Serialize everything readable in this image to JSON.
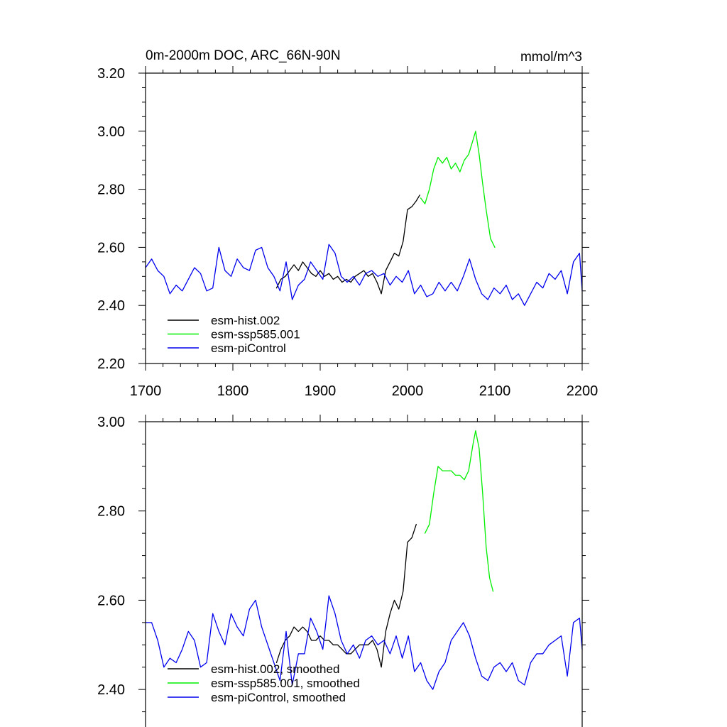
{
  "chart_data": [
    {
      "type": "line",
      "title": "0m-2000m DOC, ARC_66N-90N",
      "units": "mmol/m^3",
      "xlim": [
        1700,
        2200
      ],
      "ylim": [
        2.2,
        3.2
      ],
      "xticks": [
        1700,
        1800,
        1900,
        2000,
        2100,
        2200
      ],
      "xtick_labels": [
        "1700",
        "1800",
        "1900",
        "2000",
        "2100",
        "2200"
      ],
      "yticks": [
        2.2,
        2.4,
        2.6,
        2.8,
        3.0,
        3.2
      ],
      "ytick_labels": [
        "2.20",
        "2.40",
        "2.60",
        "2.80",
        "3.00",
        "3.20"
      ],
      "legend_position": "bottom-left",
      "series": [
        {
          "name": "esm-hist.002",
          "color": "#000000",
          "x": [
            1850,
            1855,
            1860,
            1865,
            1870,
            1875,
            1880,
            1885,
            1890,
            1895,
            1900,
            1905,
            1910,
            1915,
            1920,
            1925,
            1930,
            1935,
            1940,
            1945,
            1950,
            1955,
            1960,
            1965,
            1970,
            1975,
            1980,
            1985,
            1990,
            1995,
            2000,
            2005,
            2010,
            2014
          ],
          "values": [
            2.46,
            2.49,
            2.5,
            2.52,
            2.54,
            2.52,
            2.55,
            2.53,
            2.51,
            2.5,
            2.52,
            2.5,
            2.51,
            2.49,
            2.5,
            2.48,
            2.49,
            2.48,
            2.5,
            2.51,
            2.52,
            2.5,
            2.51,
            2.48,
            2.44,
            2.52,
            2.55,
            2.58,
            2.57,
            2.62,
            2.73,
            2.74,
            2.76,
            2.78
          ]
        },
        {
          "name": "esm-ssp585.001",
          "color": "#00ee00",
          "x": [
            2015,
            2020,
            2025,
            2030,
            2035,
            2040,
            2045,
            2050,
            2055,
            2060,
            2065,
            2070,
            2075,
            2078,
            2082,
            2086,
            2090,
            2095,
            2100
          ],
          "values": [
            2.77,
            2.75,
            2.8,
            2.87,
            2.91,
            2.89,
            2.91,
            2.87,
            2.89,
            2.86,
            2.9,
            2.92,
            2.97,
            3.0,
            2.92,
            2.82,
            2.73,
            2.63,
            2.6
          ]
        },
        {
          "name": "esm-piControl",
          "color": "#0000ee",
          "x": [
            1700,
            1707,
            1714,
            1721,
            1728,
            1735,
            1742,
            1749,
            1756,
            1763,
            1770,
            1777,
            1784,
            1791,
            1798,
            1805,
            1812,
            1819,
            1826,
            1833,
            1840,
            1847,
            1854,
            1861,
            1868,
            1875,
            1882,
            1889,
            1896,
            1903,
            1910,
            1917,
            1924,
            1931,
            1938,
            1945,
            1952,
            1959,
            1966,
            1973,
            1980,
            1987,
            1994,
            2001,
            2008,
            2015,
            2022,
            2029,
            2036,
            2043,
            2050,
            2057,
            2064,
            2071,
            2078,
            2085,
            2092,
            2099,
            2106,
            2113,
            2120,
            2127,
            2134,
            2141,
            2148,
            2155,
            2162,
            2169,
            2176,
            2183,
            2190,
            2197,
            2200
          ],
          "values": [
            2.53,
            2.56,
            2.52,
            2.5,
            2.44,
            2.47,
            2.45,
            2.49,
            2.53,
            2.51,
            2.45,
            2.46,
            2.6,
            2.52,
            2.5,
            2.56,
            2.53,
            2.52,
            2.59,
            2.6,
            2.53,
            2.5,
            2.45,
            2.55,
            2.42,
            2.47,
            2.49,
            2.55,
            2.52,
            2.49,
            2.61,
            2.58,
            2.5,
            2.48,
            2.5,
            2.47,
            2.51,
            2.52,
            2.5,
            2.51,
            2.47,
            2.5,
            2.48,
            2.52,
            2.44,
            2.47,
            2.43,
            2.44,
            2.48,
            2.45,
            2.48,
            2.45,
            2.5,
            2.56,
            2.49,
            2.44,
            2.42,
            2.46,
            2.44,
            2.47,
            2.42,
            2.44,
            2.4,
            2.44,
            2.48,
            2.46,
            2.51,
            2.49,
            2.52,
            2.44,
            2.55,
            2.58,
            2.45
          ]
        }
      ]
    },
    {
      "type": "line",
      "xlim": [
        1700,
        2200
      ],
      "ylim": [
        2.3,
        3.0
      ],
      "yticks": [
        2.4,
        2.6,
        2.8,
        3.0
      ],
      "ytick_labels": [
        "2.40",
        "2.60",
        "2.80",
        "3.00"
      ],
      "legend_position": "bottom-left",
      "series": [
        {
          "name": "esm-hist.002, smoothed",
          "color": "#000000",
          "x": [
            1850,
            1855,
            1860,
            1865,
            1870,
            1875,
            1880,
            1885,
            1890,
            1895,
            1900,
            1905,
            1910,
            1915,
            1920,
            1925,
            1930,
            1935,
            1940,
            1945,
            1950,
            1955,
            1960,
            1965,
            1970,
            1975,
            1980,
            1985,
            1990,
            1995,
            2000,
            2005,
            2010
          ],
          "values": [
            2.46,
            2.49,
            2.51,
            2.52,
            2.54,
            2.53,
            2.54,
            2.53,
            2.51,
            2.51,
            2.52,
            2.51,
            2.51,
            2.5,
            2.5,
            2.49,
            2.48,
            2.48,
            2.49,
            2.5,
            2.5,
            2.5,
            2.51,
            2.49,
            2.45,
            2.53,
            2.57,
            2.6,
            2.58,
            2.62,
            2.73,
            2.74,
            2.77
          ]
        },
        {
          "name": "esm-ssp585.001, smoothed",
          "color": "#00ee00",
          "x": [
            2020,
            2025,
            2030,
            2035,
            2040,
            2045,
            2050,
            2055,
            2060,
            2065,
            2070,
            2075,
            2078,
            2082,
            2086,
            2090,
            2094,
            2098
          ],
          "values": [
            2.75,
            2.77,
            2.84,
            2.9,
            2.89,
            2.89,
            2.89,
            2.88,
            2.88,
            2.87,
            2.89,
            2.95,
            2.98,
            2.94,
            2.84,
            2.72,
            2.65,
            2.62
          ]
        },
        {
          "name": "esm-piControl, smoothed",
          "color": "#0000ee",
          "x": [
            1700,
            1707,
            1714,
            1721,
            1728,
            1735,
            1742,
            1749,
            1756,
            1763,
            1770,
            1777,
            1784,
            1791,
            1798,
            1805,
            1812,
            1819,
            1826,
            1833,
            1840,
            1847,
            1854,
            1861,
            1868,
            1875,
            1882,
            1889,
            1896,
            1903,
            1910,
            1917,
            1924,
            1931,
            1938,
            1945,
            1952,
            1959,
            1966,
            1973,
            1980,
            1987,
            1994,
            2001,
            2008,
            2015,
            2022,
            2029,
            2036,
            2043,
            2050,
            2057,
            2064,
            2071,
            2078,
            2085,
            2092,
            2099,
            2106,
            2113,
            2120,
            2127,
            2134,
            2141,
            2148,
            2155,
            2162,
            2169,
            2176,
            2183,
            2190,
            2197,
            2200
          ],
          "values": [
            2.55,
            2.55,
            2.51,
            2.45,
            2.47,
            2.46,
            2.49,
            2.53,
            2.51,
            2.45,
            2.46,
            2.57,
            2.53,
            2.5,
            2.57,
            2.54,
            2.52,
            2.58,
            2.6,
            2.54,
            2.5,
            2.46,
            2.42,
            2.53,
            2.41,
            2.48,
            2.48,
            2.56,
            2.53,
            2.49,
            2.61,
            2.57,
            2.51,
            2.48,
            2.5,
            2.47,
            2.51,
            2.52,
            2.5,
            2.51,
            2.48,
            2.52,
            2.47,
            2.52,
            2.44,
            2.46,
            2.42,
            2.4,
            2.44,
            2.46,
            2.51,
            2.53,
            2.55,
            2.52,
            2.47,
            2.43,
            2.42,
            2.45,
            2.46,
            2.44,
            2.46,
            2.42,
            2.41,
            2.46,
            2.48,
            2.48,
            2.5,
            2.51,
            2.52,
            2.43,
            2.55,
            2.56,
            2.49
          ]
        }
      ]
    }
  ]
}
